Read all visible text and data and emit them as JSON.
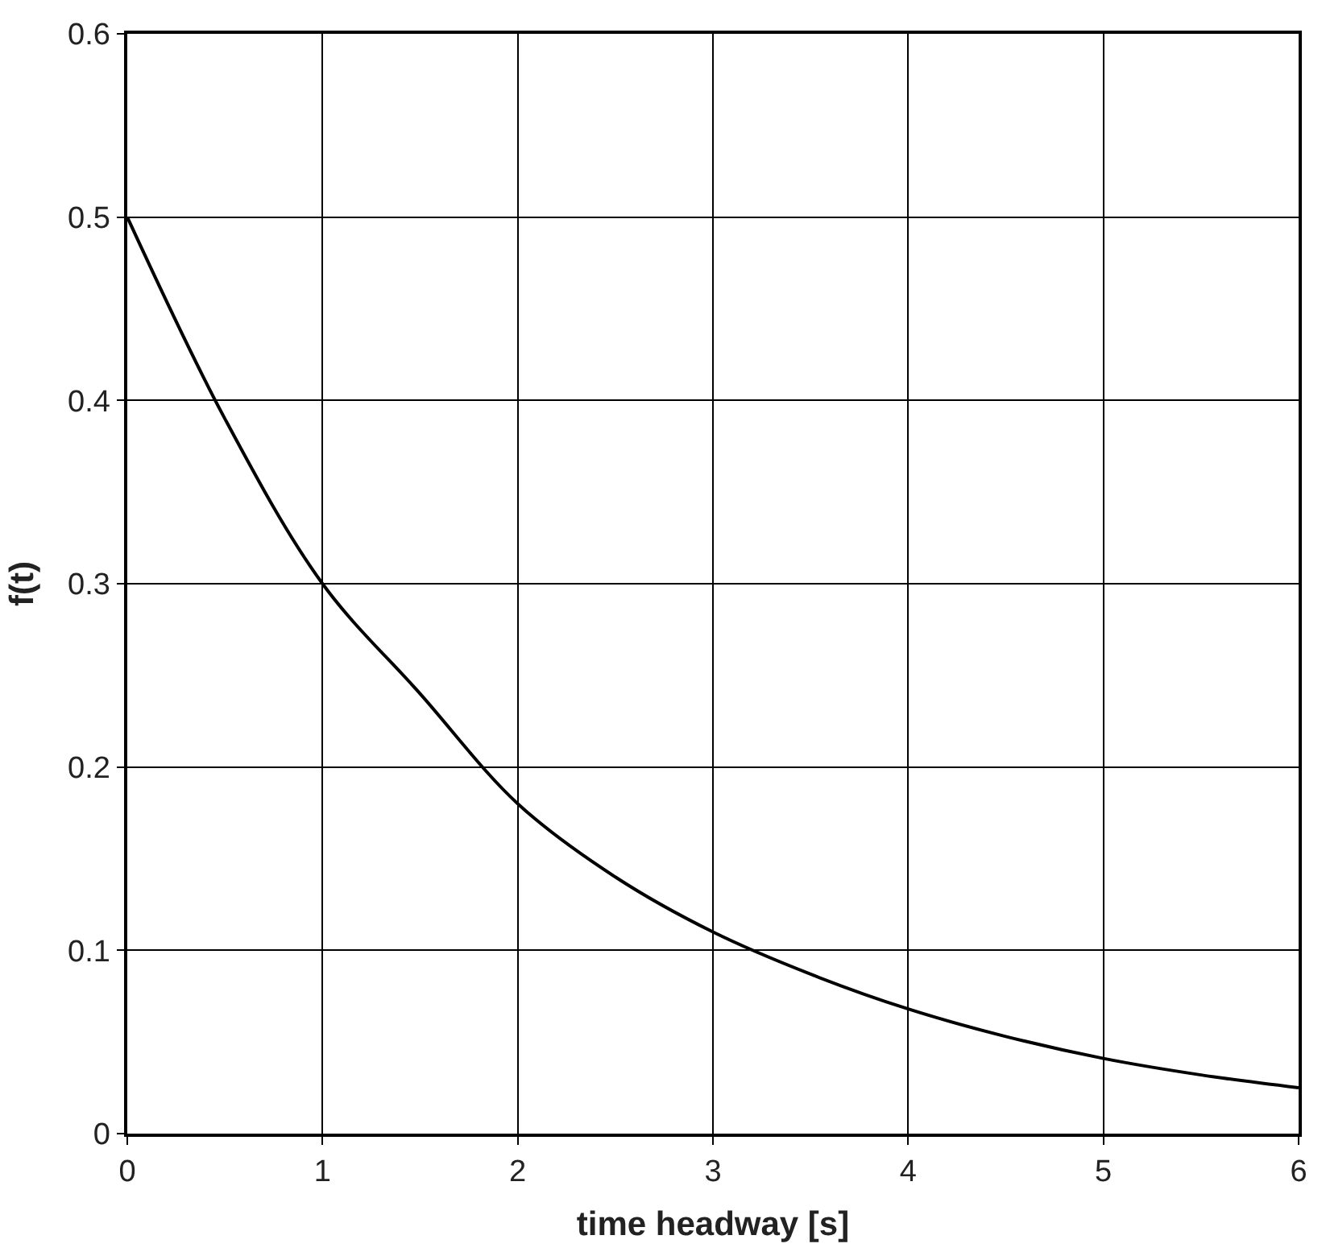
{
  "chart_data": {
    "type": "line",
    "xlabel": "time headway [s]",
    "ylabel": "f(t)",
    "x": [
      0,
      0.5,
      1,
      1.5,
      2,
      2.5,
      3,
      3.5,
      4,
      4.5,
      5,
      5.5,
      6
    ],
    "series": [
      {
        "color": "#000000",
        "values": [
          0.5,
          0.39,
          0.3,
          0.24,
          0.18,
          0.14,
          0.11,
          0.087,
          0.068,
          0.053,
          0.041,
          0.032,
          0.025
        ]
      }
    ],
    "xlim": [
      0,
      6
    ],
    "xticks": [
      0,
      1,
      2,
      3,
      4,
      5,
      6
    ],
    "ylim": [
      0,
      0.6
    ],
    "yticks": [
      0,
      0.1,
      0.2,
      0.3,
      0.4,
      0.5,
      0.6
    ],
    "grid": true,
    "marker": "none",
    "line_style": "solid"
  }
}
